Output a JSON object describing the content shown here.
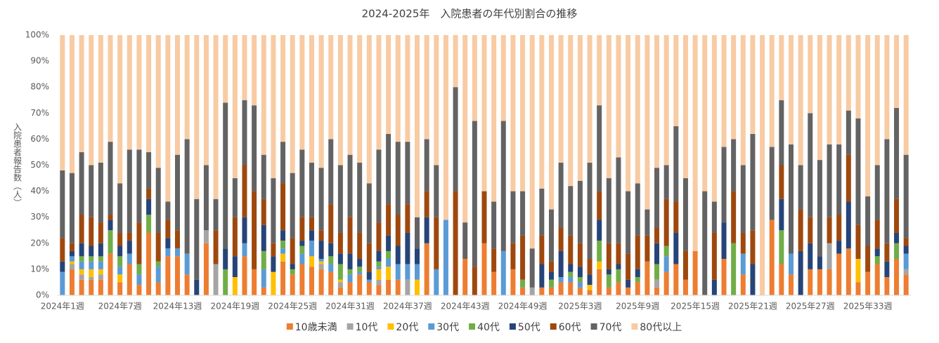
{
  "chart_data": {
    "type": "stacked_bar_percent",
    "title": "2024-2025年　入院患者の年代別割合の推移",
    "y_label": "入院患者報告数（人）",
    "categories": [
      "2024年1週",
      null,
      null,
      null,
      null,
      null,
      "2024年7週",
      null,
      null,
      null,
      null,
      null,
      "2024年13週",
      null,
      null,
      null,
      null,
      null,
      "2024年19週",
      null,
      null,
      null,
      null,
      null,
      "2024年25週",
      null,
      null,
      null,
      null,
      null,
      "2024年31週",
      null,
      null,
      null,
      null,
      null,
      "2024年37週",
      null,
      null,
      null,
      null,
      null,
      "2024年43週",
      null,
      null,
      null,
      null,
      null,
      "2024年49週",
      null,
      null,
      null,
      null,
      null,
      "2025年3週",
      null,
      null,
      null,
      null,
      null,
      "2025年9週",
      null,
      null,
      null,
      null,
      null,
      "2025年15週",
      null,
      null,
      null,
      null,
      null,
      "2025年21週",
      null,
      null,
      null,
      null,
      null,
      "2025年27週",
      null,
      null,
      null,
      null,
      null,
      "2025年33週",
      null,
      null,
      null,
      null
    ],
    "ylim": [
      0,
      100
    ],
    "yticks": [
      {
        "value": 0,
        "label": "0%"
      },
      {
        "value": 10,
        "label": "10%"
      },
      {
        "value": 20,
        "label": "20%"
      },
      {
        "value": 30,
        "label": "30%"
      },
      {
        "value": 40,
        "label": "40%"
      },
      {
        "value": 50,
        "label": "50%"
      },
      {
        "value": 60,
        "label": "60%"
      },
      {
        "value": 70,
        "label": "70%"
      },
      {
        "value": 80,
        "label": "80%"
      },
      {
        "value": 90,
        "label": "90%"
      },
      {
        "value": 100,
        "label": "100%"
      }
    ],
    "grid": false,
    "legend": "bottom",
    "series": [
      {
        "name": "10歳未満",
        "color": "#ed7d31",
        "values": [
          0,
          10,
          6,
          6,
          6,
          16,
          5,
          12,
          4,
          24,
          5,
          15,
          15,
          8,
          0,
          20,
          0,
          0,
          0,
          15,
          10,
          3,
          0,
          13,
          8,
          12,
          11,
          10,
          9,
          3,
          5,
          8,
          5,
          4,
          6,
          6,
          0,
          0,
          20,
          0,
          0,
          0,
          14,
          0,
          20,
          9,
          0,
          10,
          3,
          0,
          3,
          3,
          5,
          5,
          3,
          2,
          10,
          3,
          5,
          3,
          5,
          13,
          3,
          9,
          12,
          6,
          17,
          0,
          0,
          14,
          0,
          8,
          0,
          0,
          29,
          12,
          8,
          0,
          10,
          10,
          10,
          16,
          18,
          5,
          9,
          12,
          7,
          14,
          8
        ]
      },
      {
        "name": "10代",
        "color": "#a5a5a5",
        "values": [
          0,
          2,
          2,
          1,
          2,
          0,
          0,
          0,
          0,
          0,
          0,
          0,
          0,
          0,
          0,
          5,
          12,
          0,
          0,
          0,
          0,
          0,
          0,
          0,
          0,
          0,
          0,
          2,
          0,
          2,
          0,
          0,
          0,
          2,
          0,
          0,
          6,
          0,
          0,
          0,
          0,
          0,
          0,
          0,
          0,
          0,
          0,
          0,
          0,
          3,
          0,
          0,
          0,
          0,
          0,
          0,
          0,
          0,
          0,
          0,
          0,
          0,
          3,
          0,
          0,
          0,
          0,
          0,
          0,
          0,
          0,
          0,
          0,
          0,
          0,
          0,
          0,
          0,
          0,
          0,
          10,
          0,
          0,
          0,
          0,
          0,
          0,
          0,
          2
        ]
      },
      {
        "name": "20代",
        "color": "#ffc000",
        "values": [
          0,
          1,
          2,
          3,
          2,
          0,
          3,
          0,
          0,
          0,
          0,
          0,
          0,
          0,
          0,
          0,
          0,
          0,
          7,
          0,
          0,
          0,
          9,
          3,
          0,
          0,
          4,
          1,
          0,
          1,
          0,
          0,
          0,
          4,
          5,
          0,
          0,
          6,
          0,
          0,
          0,
          0,
          0,
          0,
          0,
          0,
          0,
          0,
          0,
          0,
          0,
          0,
          0,
          0,
          0,
          2,
          3,
          0,
          0,
          0,
          0,
          0,
          0,
          0,
          0,
          0,
          0,
          0,
          0,
          0,
          0,
          0,
          0,
          0,
          0,
          0,
          0,
          0,
          0,
          0,
          0,
          0,
          0,
          9,
          0,
          0,
          0,
          0,
          0
        ]
      },
      {
        "name": "30代",
        "color": "#5b9bd5",
        "values": [
          9,
          2,
          3,
          3,
          3,
          0,
          3,
          4,
          4,
          0,
          6,
          3,
          3,
          8,
          0,
          0,
          0,
          0,
          0,
          5,
          0,
          7,
          0,
          2,
          0,
          4,
          6,
          1,
          3,
          0,
          3,
          1,
          1,
          1,
          3,
          6,
          6,
          6,
          0,
          10,
          29,
          0,
          0,
          0,
          0,
          0,
          17,
          0,
          0,
          0,
          0,
          0,
          2,
          2,
          2,
          0,
          0,
          0,
          0,
          0,
          0,
          0,
          0,
          6,
          0,
          0,
          0,
          0,
          0,
          0,
          0,
          8,
          0,
          0,
          0,
          0,
          8,
          0,
          0,
          0,
          0,
          0,
          0,
          0,
          0,
          0,
          0,
          0,
          6
        ]
      },
      {
        "name": "40代",
        "color": "#70ad47",
        "values": [
          0,
          0,
          2,
          2,
          2,
          9,
          4,
          0,
          4,
          7,
          2,
          0,
          0,
          0,
          0,
          0,
          0,
          10,
          0,
          0,
          0,
          7,
          0,
          3,
          2,
          3,
          0,
          0,
          3,
          6,
          2,
          2,
          0,
          2,
          3,
          0,
          0,
          0,
          0,
          0,
          0,
          0,
          0,
          0,
          0,
          0,
          0,
          0,
          3,
          0,
          0,
          3,
          0,
          2,
          2,
          0,
          8,
          5,
          5,
          0,
          2,
          0,
          6,
          4,
          0,
          0,
          0,
          0,
          0,
          0,
          20,
          0,
          0,
          0,
          0,
          13,
          0,
          0,
          0,
          0,
          0,
          0,
          0,
          0,
          0,
          3,
          0,
          6,
          0
        ]
      },
      {
        "name": "50代",
        "color": "#264478",
        "values": [
          4,
          2,
          5,
          4,
          5,
          4,
          4,
          5,
          0,
          6,
          0,
          4,
          0,
          0,
          6,
          0,
          0,
          8,
          8,
          10,
          0,
          10,
          6,
          4,
          2,
          2,
          4,
          7,
          5,
          4,
          6,
          3,
          3,
          4,
          6,
          7,
          12,
          6,
          10,
          0,
          0,
          0,
          0,
          0,
          0,
          0,
          0,
          0,
          0,
          0,
          9,
          3,
          10,
          3,
          4,
          4,
          8,
          2,
          2,
          3,
          3,
          0,
          8,
          0,
          12,
          0,
          0,
          0,
          6,
          14,
          0,
          0,
          12,
          0,
          0,
          12,
          0,
          17,
          10,
          5,
          0,
          5,
          18,
          0,
          0,
          3,
          6,
          4,
          3
        ]
      },
      {
        "name": "60代",
        "color": "#9e480e",
        "values": [
          9,
          3,
          11,
          11,
          8,
          2,
          5,
          3,
          16,
          4,
          11,
          7,
          7,
          0,
          0,
          0,
          13,
          0,
          15,
          20,
          30,
          10,
          5,
          18,
          10,
          9,
          5,
          4,
          15,
          8,
          14,
          10,
          11,
          11,
          12,
          12,
          11,
          0,
          10,
          20,
          0,
          40,
          0,
          11,
          20,
          9,
          0,
          10,
          17,
          0,
          11,
          4,
          9,
          11,
          9,
          6,
          11,
          10,
          8,
          10,
          13,
          10,
          6,
          18,
          12,
          11,
          0,
          0,
          18,
          0,
          20,
          8,
          13,
          0,
          0,
          13,
          0,
          16,
          10,
          0,
          10,
          10,
          18,
          13,
          10,
          11,
          7,
          13,
          3
        ]
      },
      {
        "name": "70代",
        "color": "#636363",
        "values": [
          26,
          27,
          24,
          20,
          23,
          28,
          19,
          32,
          28,
          14,
          25,
          7,
          29,
          44,
          31,
          25,
          12,
          56,
          15,
          25,
          33,
          17,
          25,
          16,
          25,
          26,
          21,
          24,
          25,
          26,
          24,
          27,
          23,
          28,
          27,
          28,
          24,
          12,
          20,
          20,
          0,
          40,
          14,
          56,
          0,
          18,
          50,
          20,
          17,
          15,
          18,
          20,
          25,
          19,
          24,
          37,
          33,
          25,
          33,
          24,
          20,
          10,
          23,
          13,
          29,
          28,
          0,
          40,
          12,
          29,
          20,
          26,
          37,
          0,
          28,
          25,
          42,
          17,
          40,
          37,
          28,
          27,
          17,
          41,
          19,
          21,
          40,
          35,
          32
        ]
      },
      {
        "name": "80代以上",
        "color": "#f8cba3",
        "values": [
          52,
          53,
          45,
          50,
          49,
          41,
          57,
          44,
          44,
          45,
          51,
          64,
          46,
          40,
          63,
          50,
          63,
          26,
          55,
          25,
          27,
          46,
          55,
          41,
          53,
          44,
          49,
          51,
          40,
          50,
          46,
          49,
          57,
          44,
          38,
          41,
          41,
          70,
          40,
          50,
          71,
          20,
          72,
          33,
          60,
          64,
          33,
          60,
          60,
          82,
          59,
          67,
          49,
          58,
          56,
          49,
          27,
          55,
          47,
          60,
          57,
          67,
          51,
          50,
          35,
          55,
          83,
          60,
          64,
          43,
          40,
          50,
          38,
          100,
          43,
          25,
          42,
          50,
          30,
          48,
          42,
          42,
          29,
          32,
          62,
          50,
          40,
          28,
          46
        ]
      }
    ]
  }
}
